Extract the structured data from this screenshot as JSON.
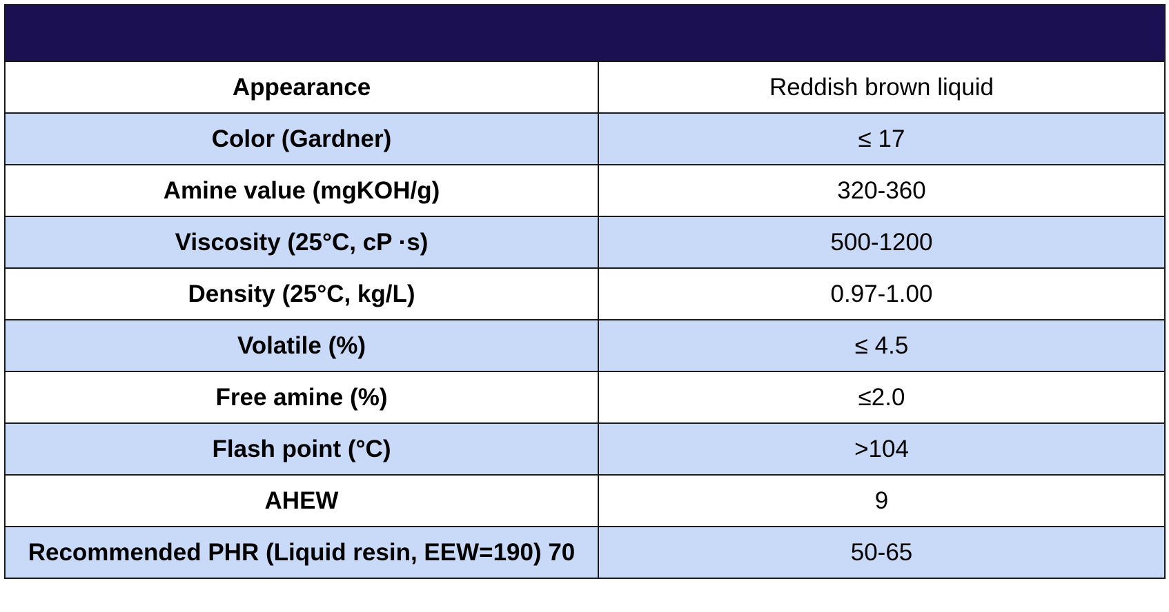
{
  "header": {
    "bg_color": "#1a1052"
  },
  "colors": {
    "row_plain": "#ffffff",
    "row_alt": "#c9daf8"
  },
  "rows": [
    {
      "property": "Appearance",
      "value": "Reddish brown liquid"
    },
    {
      "property": "Color (Gardner)",
      "value": "≤ 17"
    },
    {
      "property": "Amine value (mgKOH/g)",
      "value": "320-360"
    },
    {
      "property": "Viscosity (25°C, cP ·s)",
      "value": "500-1200"
    },
    {
      "property": "Density (25°C, kg/L)",
      "value": "0.97-1.00"
    },
    {
      "property": "Volatile (%)",
      "value": "≤ 4.5"
    },
    {
      "property": "Free amine (%)",
      "value": "≤2.0"
    },
    {
      "property": "Flash point (°C)",
      "value": ">104"
    },
    {
      "property": "AHEW",
      "value": "9"
    },
    {
      "property": "Recommended PHR (Liquid resin, EEW=190) 70",
      "value": "50-65"
    }
  ]
}
